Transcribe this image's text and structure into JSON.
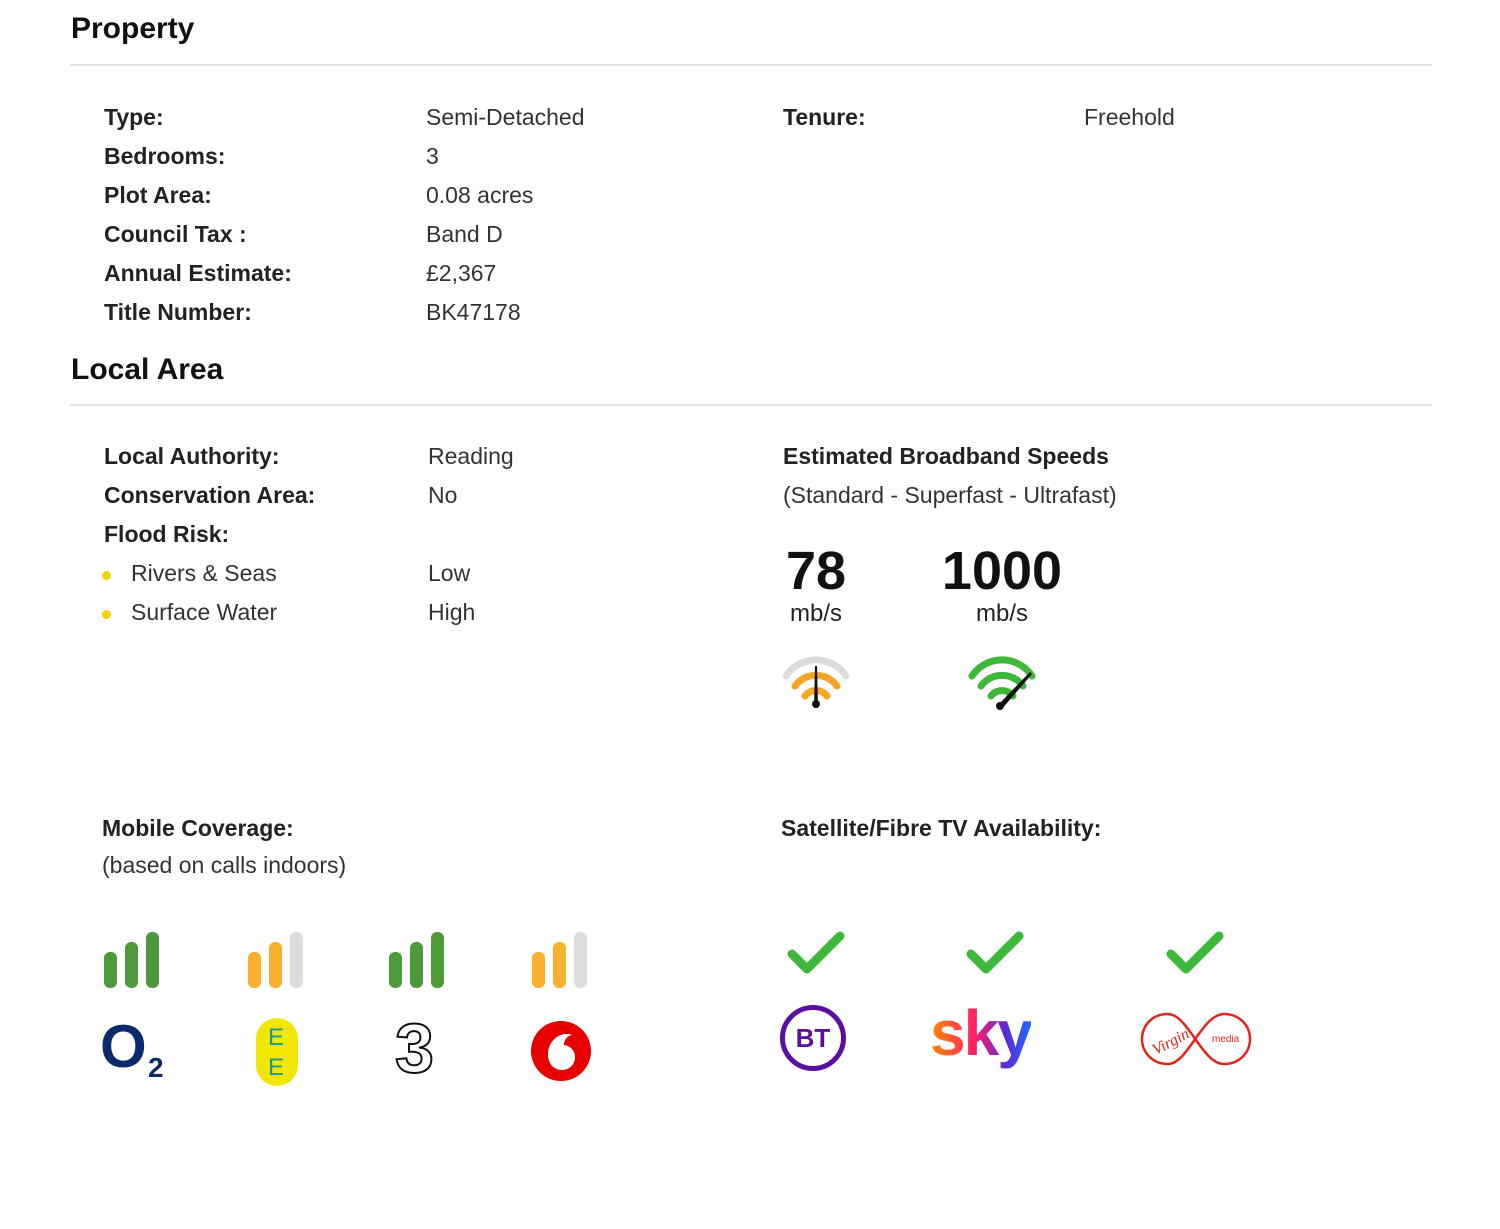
{
  "property": {
    "title": "Property",
    "rows": [
      {
        "label": "Type:",
        "value": "Semi-Detached"
      },
      {
        "label": "Bedrooms:",
        "value": "3"
      },
      {
        "label": "Plot Area:",
        "value": "0.08 acres"
      },
      {
        "label": "Council Tax :",
        "value": "Band D"
      },
      {
        "label": "Annual Estimate:",
        "value": "£2,367"
      },
      {
        "label": "Title Number:",
        "value": "BK47178"
      }
    ],
    "tenure": {
      "label": "Tenure:",
      "value": "Freehold"
    }
  },
  "local_area": {
    "title": "Local Area",
    "local_authority": {
      "label": "Local Authority:",
      "value": "Reading"
    },
    "conservation_area": {
      "label": "Conservation Area:",
      "value": "No"
    },
    "flood_risk": {
      "label": "Flood Risk:",
      "items": [
        {
          "label": "Rivers & Seas",
          "value": "Low"
        },
        {
          "label": "Surface Water",
          "value": "High"
        }
      ]
    }
  },
  "broadband": {
    "title": "Estimated Broadband Speeds",
    "subtitle": "(Standard - Superfast - Ultrafast)",
    "speeds": [
      {
        "value": "78",
        "unit": "mb/s",
        "icon": "wifi-gauge-orange-icon",
        "color": "#f5a623"
      },
      {
        "value": "1000",
        "unit": "mb/s",
        "icon": "wifi-gauge-green-icon",
        "color": "#3db83a"
      }
    ]
  },
  "mobile": {
    "title": "Mobile Coverage:",
    "subtitle": "(based on calls indoors)",
    "operators": [
      {
        "name": "O2",
        "logo_text": "O",
        "logo_sub": "2",
        "bars_color": "#4e9a3a",
        "bars_active": 3
      },
      {
        "name": "EE",
        "logo_text": "E",
        "logo_text2": "E",
        "bars_color": "#f7b12f",
        "bars_active": 2
      },
      {
        "name": "Three",
        "logo_text": "3",
        "bars_color": "#4e9a3a",
        "bars_active": 3
      },
      {
        "name": "Vodafone",
        "bars_color": "#f7b12f",
        "bars_active": 2
      }
    ]
  },
  "tv": {
    "title": "Satellite/Fibre TV Availability:",
    "providers": [
      {
        "name": "BT",
        "logo_text": "BT",
        "available": true
      },
      {
        "name": "Sky",
        "logo_text": "sky",
        "available": true
      },
      {
        "name": "Virgin Media",
        "logo_text": "Virgin",
        "logo_text2": "media",
        "available": true
      }
    ]
  },
  "colors": {
    "bar_inactive": "#dcdcdc",
    "check": "#3db83a",
    "bullet": "#f2d200"
  }
}
